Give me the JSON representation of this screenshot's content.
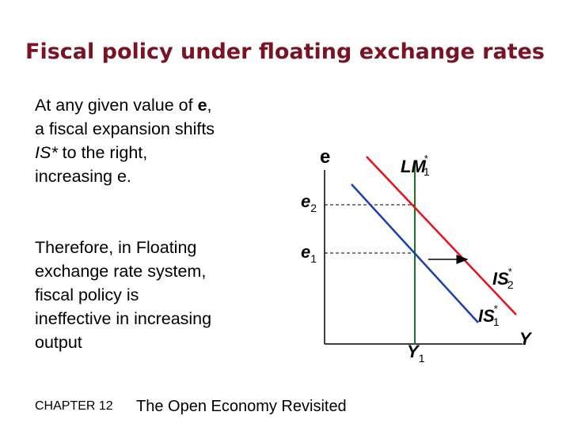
{
  "slide": {
    "title": "Fiscal policy under floating exchange rates"
  },
  "text": {
    "para1": {
      "line1_prefix": "At any given value of ",
      "line1_bold": "e",
      "line1_suffix": ",",
      "line2": "a fiscal expansion shifts",
      "line3_italic": "IS*",
      "line3_rest": " to the right,",
      "line4": "increasing e."
    },
    "para2": {
      "lines": [
        "Therefore, in Floating",
        "exchange rate system,",
        "fiscal policy is",
        "ineffective in increasing",
        "output"
      ]
    }
  },
  "diagram": {
    "y_axis_label": "e",
    "x_axis_label": "Y",
    "lm_label": {
      "main": "LM",
      "sub": "1",
      "sup": "*"
    },
    "is2_label": {
      "main": "IS",
      "sub": "2",
      "sup": "*"
    },
    "is1_label": {
      "main": "IS",
      "sub": "1",
      "sup": "*"
    },
    "e2_label": {
      "main": "e",
      "sub": "2"
    },
    "e1_label": {
      "main": "e",
      "sub": "1"
    },
    "y1_label": {
      "main": "Y",
      "sub": "1"
    },
    "colors": {
      "axes": "#000000",
      "lm_curve": "#1a7a1a",
      "is1_curve": "#1c3fb0",
      "is2_curve": "#e8101c",
      "dashed": "#000000"
    }
  },
  "footer": {
    "chapter": "CHAPTER 12",
    "title": "The Open Economy Revisited"
  }
}
